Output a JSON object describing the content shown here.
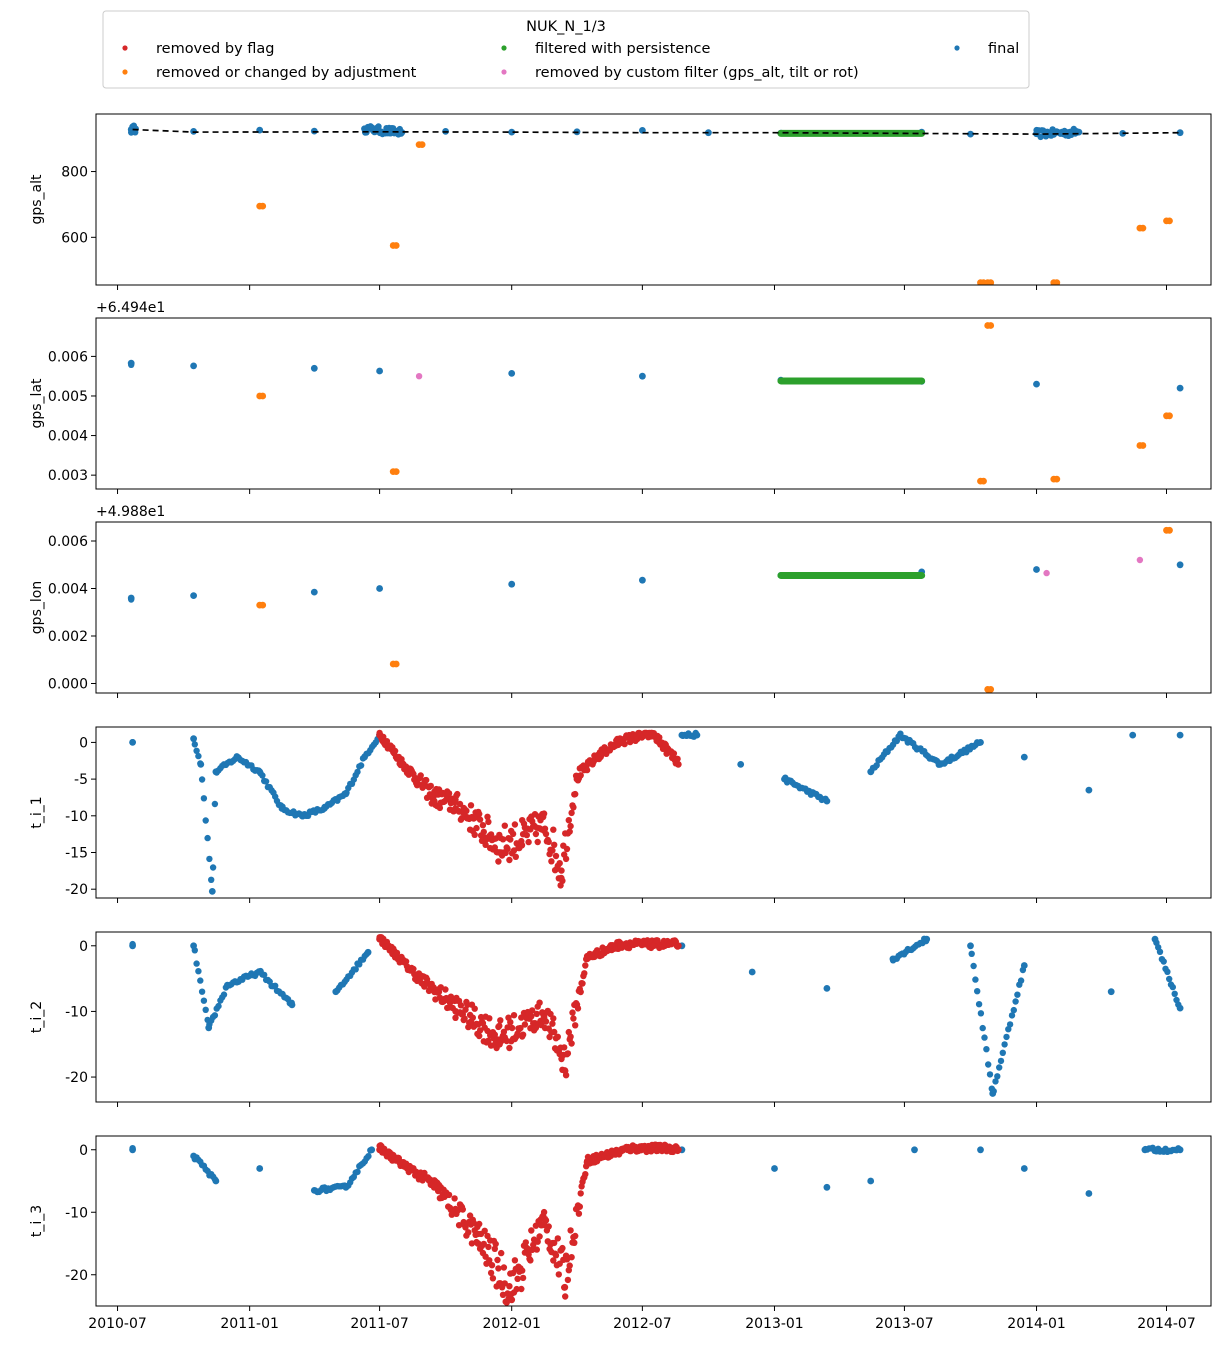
{
  "chart_data": {
    "type": "scatter",
    "legend": {
      "title": "NUK_N_1/3",
      "placement": "top-center",
      "entries": [
        {
          "name": "removed by flag",
          "color": "#d62728"
        },
        {
          "name": "filtered with persistence",
          "color": "#2ca02c"
        },
        {
          "name": "final",
          "color": "#1f77b4"
        },
        {
          "name": "removed or changed by adjustment",
          "color": "#ff7f0e"
        },
        {
          "name": "removed by custom filter (gps_alt, tilt or rot)",
          "color": "#e377c2"
        }
      ]
    },
    "x_axis": {
      "type": "date",
      "range": [
        "2010-06-01",
        "2014-09-01"
      ],
      "ticks": [
        "2010-07",
        "2011-01",
        "2011-07",
        "2012-01",
        "2012-07",
        "2013-01",
        "2013-07",
        "2014-01",
        "2014-07"
      ]
    },
    "panels": [
      {
        "ylabel": "gps_alt",
        "offset_text": "",
        "offset": 0,
        "ylim": [
          455,
          975
        ],
        "yticks": [
          600,
          800
        ],
        "trend": {
          "style": "dashed",
          "color": "#000000",
          "points": [
            [
              "2010-07-22",
              928
            ],
            [
              "2010-10-15",
              920
            ],
            [
              "2011-07-01",
              921
            ],
            [
              "2012-01-01",
              920
            ],
            [
              "2012-07-01",
              918
            ],
            [
              "2013-01-01",
              918
            ],
            [
              "2013-07-01",
              916
            ],
            [
              "2014-01-01",
              914
            ],
            [
              "2014-07-20",
              918
            ]
          ]
        },
        "final": [
          [
            "2010-07-20",
            928
          ],
          [
            "2010-07-26",
            930
          ],
          [
            "2010-10-15",
            922
          ],
          [
            "2011-01-15",
            926
          ],
          [
            "2011-04-01",
            923
          ],
          [
            "2011-06-10",
            930
          ],
          [
            "2011-08-01",
            919
          ],
          [
            "2011-10-01",
            922
          ],
          [
            "2012-01-01",
            920
          ],
          [
            "2012-04-01",
            921
          ],
          [
            "2012-07-01",
            925
          ],
          [
            "2012-10-01",
            918
          ],
          [
            "2013-01-10",
            917
          ],
          [
            "2013-07-25",
            920
          ],
          [
            "2013-10-01",
            914
          ],
          [
            "2014-01-01",
            915
          ],
          [
            "2014-03-01",
            920
          ],
          [
            "2014-05-01",
            916
          ],
          [
            "2014-07-20",
            918
          ]
        ],
        "filtered": [
          [
            "2013-01-10",
            916
          ],
          [
            "2013-07-25",
            916
          ]
        ],
        "flagged": [],
        "adjusted": [
          [
            "2011-01-15",
            695
          ],
          [
            "2011-07-20",
            575
          ],
          [
            "2011-08-25",
            882
          ],
          [
            "2013-10-15",
            462
          ],
          [
            "2013-10-25",
            462
          ],
          [
            "2014-01-25",
            462
          ],
          [
            "2014-05-25",
            628
          ],
          [
            "2014-07-01",
            650
          ]
        ],
        "custom": []
      },
      {
        "ylabel": "gps_lat",
        "offset_text": "+6.494e1",
        "offset": 64.94,
        "ylim": [
          0.00265,
          0.00697
        ],
        "yticks": [
          0.003,
          0.004,
          0.005,
          0.006,
          0.007
        ],
        "trend": null,
        "final": [
          [
            "2010-07-20",
            0.00583
          ],
          [
            "2010-10-15",
            0.00576
          ],
          [
            "2011-04-01",
            0.0057
          ],
          [
            "2011-07-01",
            0.00563
          ],
          [
            "2012-01-01",
            0.00557
          ],
          [
            "2012-07-01",
            0.0055
          ],
          [
            "2013-01-10",
            0.0054
          ],
          [
            "2013-07-25",
            0.00537
          ],
          [
            "2014-01-01",
            0.0053
          ],
          [
            "2014-07-20",
            0.0052
          ]
        ],
        "filtered": [
          [
            "2013-01-10",
            0.00538
          ],
          [
            "2013-07-25",
            0.00538
          ]
        ],
        "flagged": [],
        "adjusted": [
          [
            "2011-01-15",
            0.005
          ],
          [
            "2011-07-20",
            0.00309
          ],
          [
            "2013-10-15",
            0.00285
          ],
          [
            "2013-10-25",
            0.00678
          ],
          [
            "2014-01-25",
            0.0029
          ],
          [
            "2014-05-25",
            0.00375
          ],
          [
            "2014-07-01",
            0.0045
          ]
        ],
        "custom": [
          [
            "2011-08-25",
            0.0055
          ]
        ]
      },
      {
        "ylabel": "gps_lon",
        "offset_text": "+4.988e1",
        "offset": 49.88,
        "ylim": [
          -0.0004,
          0.0068
        ],
        "yticks": [
          0.0,
          0.002,
          0.004,
          0.006
        ],
        "trend": null,
        "final": [
          [
            "2010-07-20",
            0.0036
          ],
          [
            "2010-10-15",
            0.0037
          ],
          [
            "2011-04-01",
            0.00385
          ],
          [
            "2011-07-01",
            0.004
          ],
          [
            "2012-01-01",
            0.00418
          ],
          [
            "2012-07-01",
            0.00435
          ],
          [
            "2013-01-10",
            0.00455
          ],
          [
            "2013-07-25",
            0.0047
          ],
          [
            "2014-01-01",
            0.0048
          ],
          [
            "2014-07-20",
            0.005
          ]
        ],
        "filtered": [
          [
            "2013-01-10",
            0.00455
          ],
          [
            "2013-07-25",
            0.00455
          ]
        ],
        "flagged": [],
        "adjusted": [
          [
            "2011-01-15",
            0.0033
          ],
          [
            "2011-07-20",
            0.00082
          ],
          [
            "2013-10-25",
            -0.00025
          ],
          [
            "2014-07-01",
            0.00645
          ]
        ],
        "custom": [
          [
            "2014-01-15",
            0.00465
          ],
          [
            "2014-05-25",
            0.0052
          ]
        ]
      },
      {
        "ylabel": "t_i_1",
        "offset_text": "",
        "offset": 0,
        "ylim": [
          -21.2,
          2.1
        ],
        "yticks": [
          -20,
          -15,
          -10,
          -5,
          0
        ],
        "trend": null,
        "final": [
          [
            "2010-07-22",
            0
          ],
          [
            "2010-10-15",
            0.5
          ],
          [
            "2010-10-25",
            -3
          ],
          [
            "2010-11-10",
            -20.3
          ],
          [
            "2010-11-15",
            -4
          ],
          [
            "2010-12-15",
            -2
          ],
          [
            "2011-01-15",
            -4
          ],
          [
            "2011-02-15",
            -9
          ],
          [
            "2011-03-15",
            -10
          ],
          [
            "2011-04-15",
            -9
          ],
          [
            "2011-05-15",
            -7
          ],
          [
            "2011-06-10",
            -2
          ],
          [
            "2011-07-01",
            1
          ],
          [
            "2012-08-25",
            1
          ],
          [
            "2012-09-15",
            1
          ],
          [
            "2012-11-15",
            -3
          ],
          [
            "2013-01-15",
            -5
          ],
          [
            "2013-03-15",
            -8
          ],
          [
            "2013-05-15",
            -4
          ],
          [
            "2013-06-25",
            1
          ],
          [
            "2013-08-20",
            -3
          ],
          [
            "2013-10-15",
            0
          ],
          [
            "2013-12-15",
            -2
          ],
          [
            "2014-03-15",
            -6.5
          ],
          [
            "2014-05-15",
            1
          ],
          [
            "2014-07-20",
            1
          ]
        ],
        "filtered": [],
        "flagged": [
          [
            "2011-07-01",
            1
          ],
          [
            "2011-08-01",
            -3
          ],
          [
            "2011-09-15",
            -8
          ],
          [
            "2011-10-15",
            -9
          ],
          [
            "2011-12-15",
            -15
          ],
          [
            "2012-01-15",
            -14
          ],
          [
            "2012-02-15",
            -12
          ],
          [
            "2012-03-10",
            -18.5
          ],
          [
            "2012-04-01",
            -5
          ],
          [
            "2012-05-01",
            -2
          ],
          [
            "2012-06-01",
            0
          ],
          [
            "2012-07-15",
            1
          ],
          [
            "2012-08-20",
            -3
          ]
        ],
        "adjusted": [],
        "custom": []
      },
      {
        "ylabel": "t_i_2",
        "offset_text": "",
        "offset": 0,
        "ylim": [
          -23.8,
          2.1
        ],
        "yticks": [
          -20,
          -10,
          0
        ],
        "trend": null,
        "final": [
          [
            "2010-07-22",
            0
          ],
          [
            "2010-10-15",
            0
          ],
          [
            "2010-11-05",
            -12.5
          ],
          [
            "2010-12-01",
            -6
          ],
          [
            "2011-01-15",
            -4
          ],
          [
            "2011-03-01",
            -9
          ],
          [
            "2011-05-01",
            -7
          ],
          [
            "2011-06-15",
            -1
          ],
          [
            "2012-08-25",
            0
          ],
          [
            "2012-12-01",
            -4
          ],
          [
            "2013-03-15",
            -6.5
          ],
          [
            "2013-06-15",
            -2
          ],
          [
            "2013-08-01",
            1
          ],
          [
            "2013-10-01",
            0
          ],
          [
            "2013-11-01",
            -22.5
          ],
          [
            "2013-12-15",
            -3
          ],
          [
            "2014-04-15",
            -7
          ],
          [
            "2014-06-15",
            1
          ],
          [
            "2014-07-20",
            -9.5
          ]
        ],
        "filtered": [],
        "flagged": [
          [
            "2011-07-01",
            1
          ],
          [
            "2011-09-01",
            -6
          ],
          [
            "2011-10-15",
            -10
          ],
          [
            "2011-12-15",
            -15
          ],
          [
            "2012-02-15",
            -11
          ],
          [
            "2012-03-15",
            -19
          ],
          [
            "2012-04-15",
            -2
          ],
          [
            "2012-06-01",
            0
          ],
          [
            "2012-08-20",
            0
          ]
        ],
        "adjusted": [],
        "custom": []
      },
      {
        "ylabel": "t_i_3",
        "offset_text": "",
        "offset": 0,
        "ylim": [
          -25,
          2.2
        ],
        "yticks": [
          -20,
          -10,
          0
        ],
        "trend": null,
        "final": [
          [
            "2010-07-22",
            0
          ],
          [
            "2010-10-15",
            -1
          ],
          [
            "2010-11-15",
            -5
          ],
          [
            "2011-01-15",
            -3
          ],
          [
            "2011-04-01",
            -6.5
          ],
          [
            "2011-05-15",
            -6
          ],
          [
            "2011-06-20",
            0
          ],
          [
            "2012-08-25",
            0
          ],
          [
            "2013-01-01",
            -3
          ],
          [
            "2013-03-15",
            -6
          ],
          [
            "2013-05-15",
            -5
          ],
          [
            "2013-07-15",
            0
          ],
          [
            "2013-10-15",
            0
          ],
          [
            "2013-12-15",
            -3
          ],
          [
            "2014-03-15",
            -7
          ],
          [
            "2014-06-01",
            0
          ],
          [
            "2014-07-20",
            0
          ]
        ],
        "filtered": [],
        "flagged": [
          [
            "2011-07-01",
            0
          ],
          [
            "2011-09-15",
            -6
          ],
          [
            "2011-11-15",
            -15
          ],
          [
            "2012-01-01",
            -24
          ],
          [
            "2012-02-15",
            -12
          ],
          [
            "2012-03-15",
            -22
          ],
          [
            "2012-04-15",
            -2
          ],
          [
            "2012-06-15",
            0
          ],
          [
            "2012-08-20",
            0
          ]
        ],
        "adjusted": [],
        "custom": []
      }
    ]
  }
}
